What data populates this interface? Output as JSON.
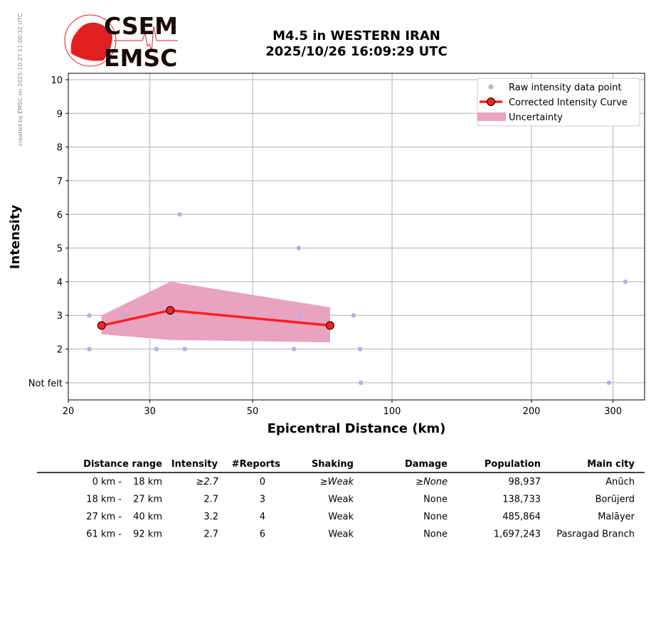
{
  "watermark": "created by EMSC on 2025-10-27 11:00:32 UTC",
  "logo": {
    "line1": "CSEM",
    "line2": "EMSC"
  },
  "chart_data": {
    "type": "scatter",
    "title": "M4.5 in WESTERN IRAN",
    "subtitle": "2025/10/26 16:09:29 UTC",
    "xlabel": "Epicentral Distance (km)",
    "ylabel": "Intensity",
    "xscale": "log",
    "xlim": [
      20,
      351
    ],
    "ylim": [
      0.49,
      10.19
    ],
    "xticks": [
      20,
      30,
      50,
      100,
      200,
      300
    ],
    "xtick_labels": [
      "20",
      "30",
      "50",
      "100",
      "200",
      "300"
    ],
    "yticks": [
      1,
      2,
      3,
      4,
      5,
      6,
      7,
      8,
      9,
      10
    ],
    "ytick_labels": [
      "Not felt",
      "2",
      "3",
      "4",
      "5",
      "6",
      "7",
      "8",
      "9",
      "10"
    ],
    "grid": true,
    "legend_position": "top-right",
    "legend": [
      "Raw intensity data point",
      "Corrected Intensity Curve",
      "Uncertainty"
    ],
    "colors": {
      "raw": "#aab4e8",
      "curve": "#ff2020",
      "uncertainty": "#e8a3c0"
    },
    "raw_points": [
      {
        "x": 22.2,
        "y": 3
      },
      {
        "x": 22.2,
        "y": 2
      },
      {
        "x": 26.4,
        "y": 3
      },
      {
        "x": 31.0,
        "y": 2
      },
      {
        "x": 34.8,
        "y": 6
      },
      {
        "x": 35.7,
        "y": 2
      },
      {
        "x": 62.9,
        "y": 5
      },
      {
        "x": 63.4,
        "y": 3
      },
      {
        "x": 61.4,
        "y": 2
      },
      {
        "x": 82.6,
        "y": 3
      },
      {
        "x": 85.3,
        "y": 2
      },
      {
        "x": 85.6,
        "y": 1
      },
      {
        "x": 294,
        "y": 1
      },
      {
        "x": 319,
        "y": 4
      }
    ],
    "curve": [
      {
        "x": 23.6,
        "y": 2.7
      },
      {
        "x": 33.2,
        "y": 3.15
      },
      {
        "x": 73.5,
        "y": 2.7
      }
    ],
    "uncertainty": [
      {
        "x": 23.6,
        "lower": 2.44,
        "upper": 3.0
      },
      {
        "x": 33.2,
        "lower": 2.27,
        "upper": 4.0
      },
      {
        "x": 73.5,
        "lower": 2.2,
        "upper": 3.24
      }
    ]
  },
  "table": {
    "headers": [
      "Distance range",
      "Intensity",
      "#Reports",
      "Shaking",
      "Damage",
      "Population",
      "Main city"
    ],
    "rows": [
      {
        "dist_from": "0 km -",
        "dist_to": "18 km",
        "intensity": "≥2.7",
        "reports": "0",
        "shaking": "≥Weak",
        "damage": "≥None",
        "population": "98,937",
        "city": "Anūch"
      },
      {
        "dist_from": "18 km -",
        "dist_to": "27 km",
        "intensity": "2.7",
        "reports": "3",
        "shaking": "Weak",
        "damage": "None",
        "population": "138,733",
        "city": "Borūjerd"
      },
      {
        "dist_from": "27 km -",
        "dist_to": "40 km",
        "intensity": "3.2",
        "reports": "4",
        "shaking": "Weak",
        "damage": "None",
        "population": "485,864",
        "city": "Malāyer"
      },
      {
        "dist_from": "61 km -",
        "dist_to": "92 km",
        "intensity": "2.7",
        "reports": "6",
        "shaking": "Weak",
        "damage": "None",
        "population": "1,697,243",
        "city": "Pasragad Branch"
      }
    ]
  }
}
